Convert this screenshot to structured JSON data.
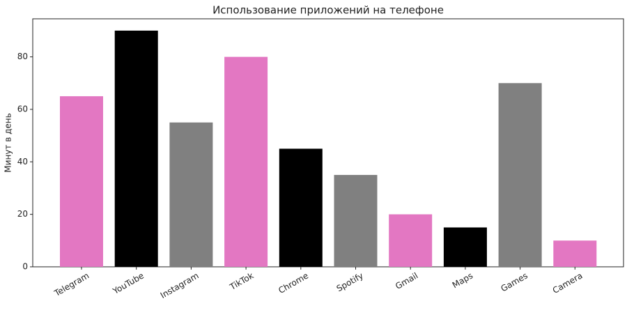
{
  "chart_data": {
    "type": "bar",
    "title": "Использование приложений на телефоне",
    "y_label": "Минут в день",
    "categories": [
      "Telegram",
      "YouTube",
      "Instagram",
      "TikTok",
      "Chrome",
      "Spotify",
      "Gmail",
      "Maps",
      "Games",
      "Camera"
    ],
    "values": [
      65,
      90,
      55,
      80,
      45,
      35,
      20,
      15,
      70,
      10
    ],
    "colors": [
      "#e377c2",
      "#000000",
      "#808080",
      "#e377c2",
      "#000000",
      "#808080",
      "#e377c2",
      "#000000",
      "#808080",
      "#e377c2"
    ],
    "ylim": [
      0,
      94.5
    ],
    "yticks": [
      0,
      20,
      40,
      60,
      80
    ],
    "grid": false
  }
}
